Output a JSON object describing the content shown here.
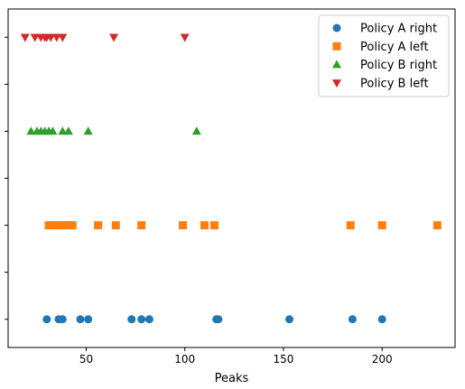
{
  "chart_data": {
    "type": "scatter",
    "title": "",
    "xlabel": "Peaks",
    "ylabel": "",
    "xlim": [
      10.4,
      237
    ],
    "ylim": [
      -0.3,
      3.3
    ],
    "xticks": [
      50,
      100,
      150,
      200
    ],
    "xtick_labels": [
      "50",
      "100",
      "150",
      "200"
    ],
    "yticks": [
      0,
      0.5,
      1,
      1.5,
      2,
      2.5,
      3
    ],
    "grid": false,
    "legend": "top-right",
    "series": [
      {
        "name": "Policy A right",
        "marker": "circle",
        "color": "#1f77b4",
        "y": 0,
        "x": [
          30,
          36,
          38,
          47,
          51,
          73,
          78,
          82,
          116,
          117,
          153,
          185,
          200
        ]
      },
      {
        "name": "Policy A left",
        "marker": "square",
        "color": "#ff7f0e",
        "y": 1,
        "x": [
          31,
          34,
          36,
          39,
          41,
          43,
          56,
          65,
          78,
          99,
          110,
          115,
          184,
          200,
          228
        ]
      },
      {
        "name": "Policy B right",
        "marker": "triangle-up",
        "color": "#2ca02c",
        "y": 2,
        "x": [
          22,
          25,
          27,
          29,
          31,
          33,
          38,
          41,
          51,
          106
        ]
      },
      {
        "name": "Policy B left",
        "marker": "triangle-down",
        "color": "#d62728",
        "y": 3,
        "x": [
          19,
          24,
          27,
          29,
          30,
          32,
          35,
          38,
          64,
          100
        ]
      }
    ]
  }
}
